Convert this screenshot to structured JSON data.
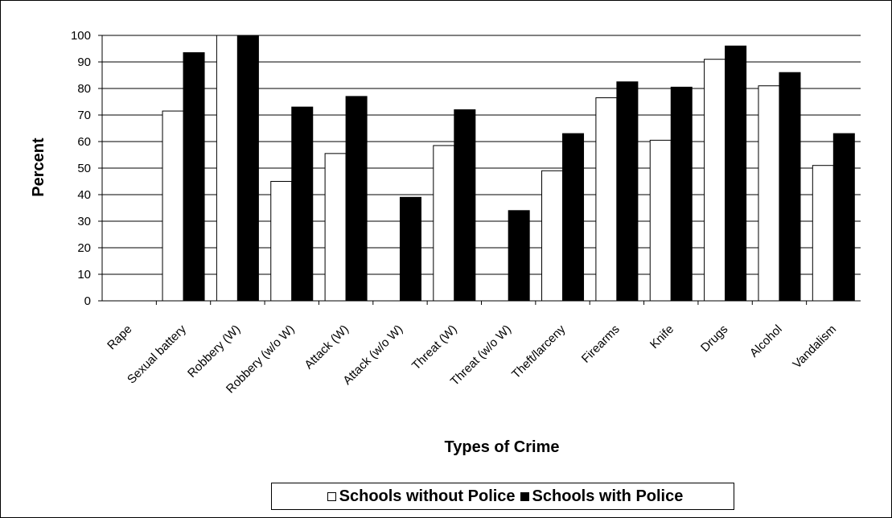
{
  "chart_data": {
    "type": "bar",
    "xlabel": "Types of Crime",
    "ylabel": "Percent",
    "ylim": [
      0,
      100
    ],
    "yticks": [
      0,
      10,
      20,
      30,
      40,
      50,
      60,
      70,
      80,
      90,
      100
    ],
    "grid": "horizontal",
    "legend_position": "bottom",
    "categories": [
      "Rape",
      "Sexual battery",
      "Robbery (W)",
      "Robbery (w/o W)",
      "Attack (W)",
      "Attack (w/o W)",
      "Threat (W)",
      "Threat (w/o W)",
      "Theft/larceny",
      "Firearms",
      "Knife",
      "Drugs",
      "Alcohol",
      "Vandalism"
    ],
    "series": [
      {
        "name": "Schools without Police",
        "color": "#ffffff",
        "values": [
          0,
          71.5,
          100,
          45,
          55.5,
          0,
          58.5,
          0,
          49,
          76.5,
          60.5,
          91,
          81,
          51
        ]
      },
      {
        "name": "Schools with Police",
        "color": "#000000",
        "values": [
          0,
          93.5,
          100,
          73,
          77,
          39,
          72,
          34,
          63,
          82.5,
          80.5,
          96,
          86,
          63
        ]
      }
    ]
  },
  "legend": {
    "items": [
      {
        "label": "Schools without Police",
        "color": "#ffffff"
      },
      {
        "label": "Schools with Police",
        "color": "#000000"
      }
    ]
  }
}
